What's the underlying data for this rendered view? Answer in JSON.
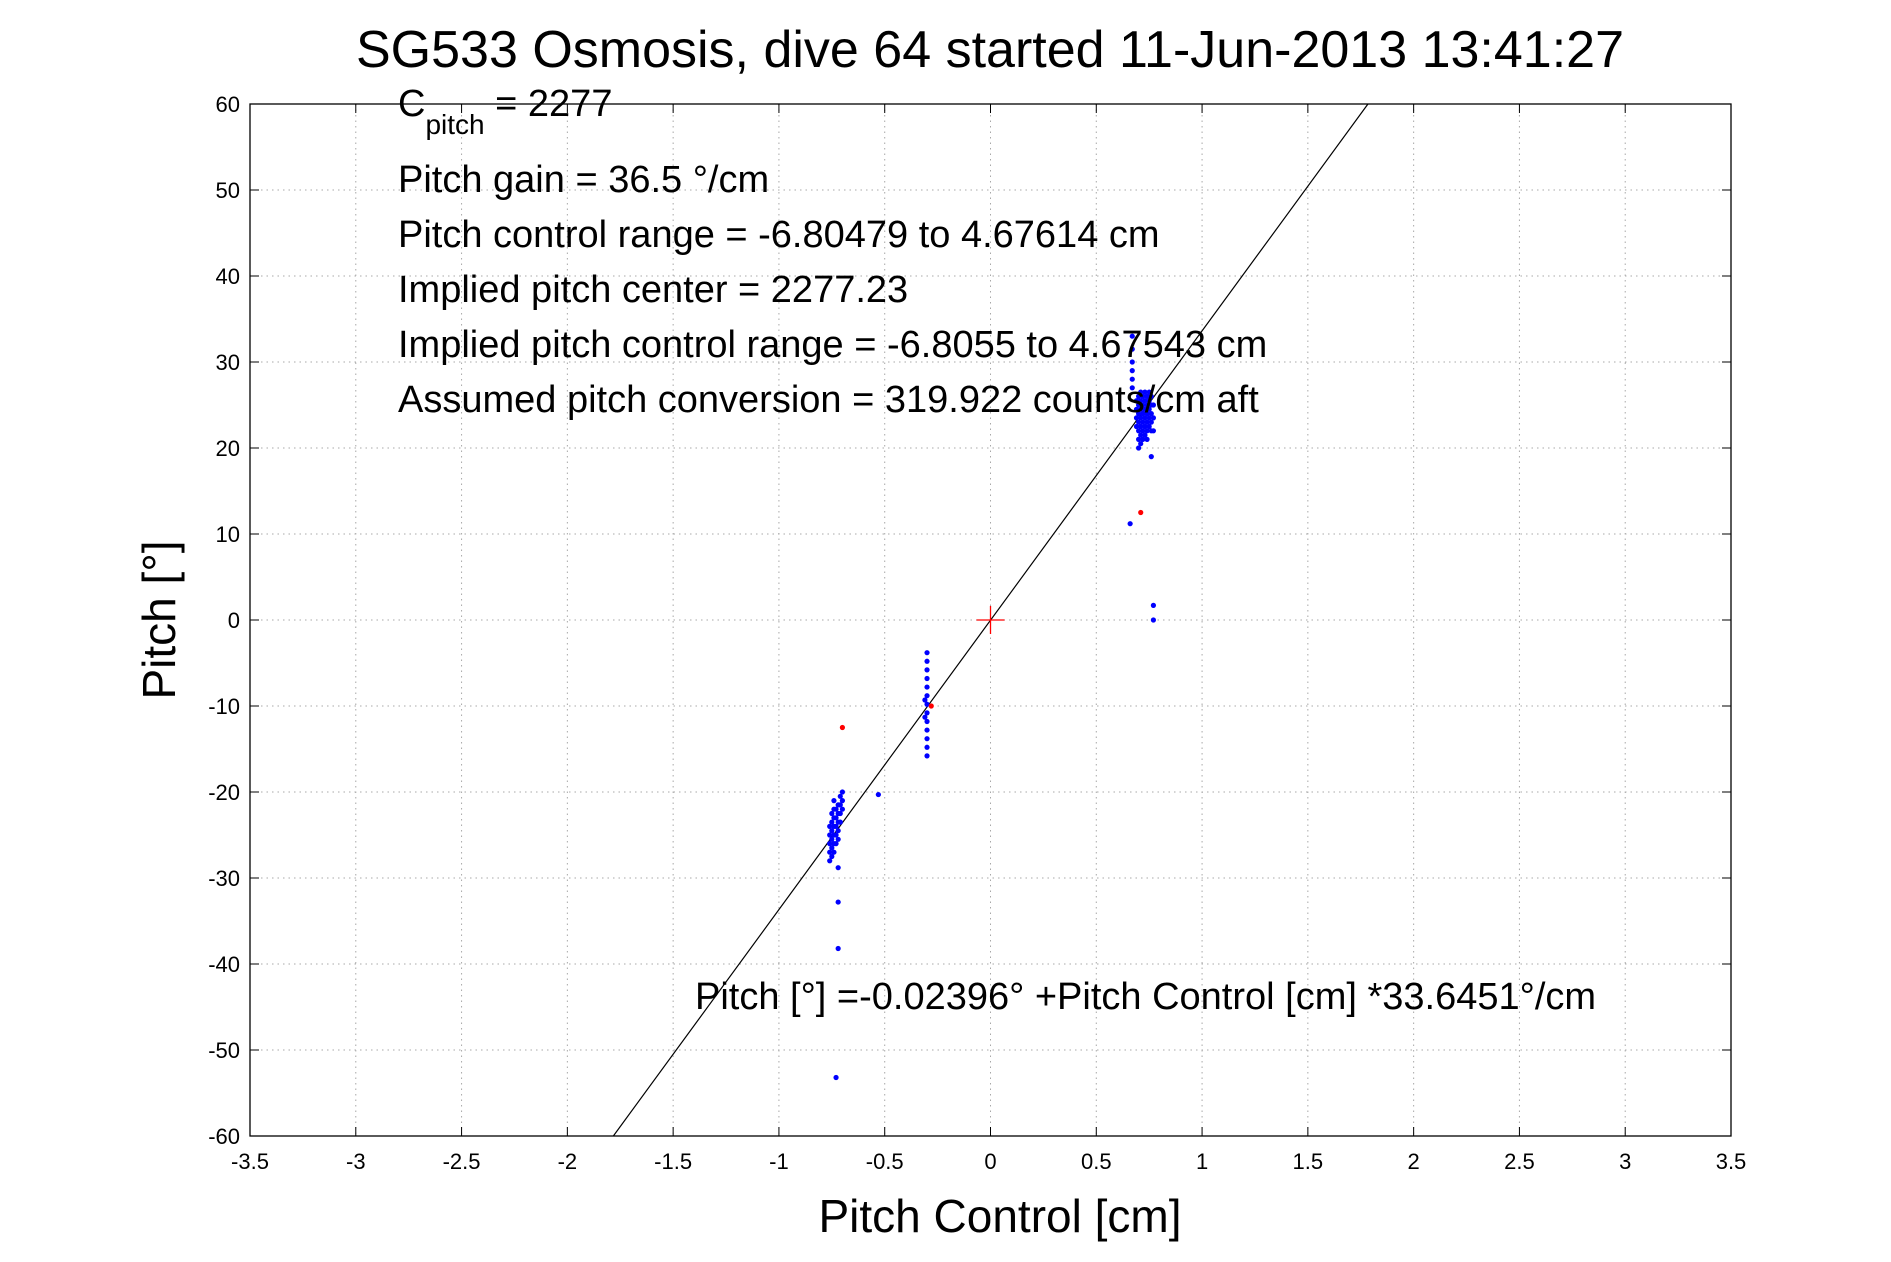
{
  "chart_data": {
    "type": "scatter",
    "title": "SG533 Osmosis, dive 64 started 11-Jun-2013 13:41:27",
    "xlabel": "Pitch Control [cm]",
    "ylabel": "Pitch [°]",
    "xlim": [
      -3.5,
      3.5
    ],
    "ylim": [
      -60,
      60
    ],
    "x_ticks": [
      "-3.5",
      "-3",
      "-2.5",
      "-2",
      "-1.5",
      "-1",
      "-0.5",
      "0",
      "0.5",
      "1",
      "1.5",
      "2",
      "2.5",
      "3",
      "3.5"
    ],
    "y_ticks": [
      "-60",
      "-50",
      "-40",
      "-30",
      "-20",
      "-10",
      "0",
      "10",
      "20",
      "30",
      "40",
      "50",
      "60"
    ],
    "grid": true,
    "annotations": {
      "c_pitch_symbol": "C",
      "c_pitch_subscript": "pitch",
      "c_pitch_value": " = 2277",
      "pitch_gain": "Pitch gain = 36.5 °/cm",
      "pitch_control_range": "Pitch control range = -6.80479 to 4.67614 cm",
      "implied_pitch_center": "Implied pitch center = 2277.23",
      "implied_pitch_control_range": "Implied pitch control range = -6.8055 to 4.67543 cm",
      "assumed_pitch_conversion": "Assumed pitch conversion = 319.922 counts/cm aft",
      "fit_equation": "Pitch [°] =-0.02396° +Pitch Control [cm] *33.6451°/cm"
    },
    "fit_line": {
      "intercept": -0.02396,
      "slope": 33.6451
    },
    "center_marker": {
      "x": 0,
      "y": 0
    },
    "series": [
      {
        "color": "#0000ff",
        "points": [
          [
            -0.76,
            -24.0
          ],
          [
            -0.76,
            -25.0
          ],
          [
            -0.76,
            -26.0
          ],
          [
            -0.76,
            -27.0
          ],
          [
            -0.76,
            -28.0
          ],
          [
            -0.75,
            -22.5
          ],
          [
            -0.75,
            -23.5
          ],
          [
            -0.75,
            -24.5
          ],
          [
            -0.75,
            -25.5
          ],
          [
            -0.75,
            -26.5
          ],
          [
            -0.75,
            -27.5
          ],
          [
            -0.74,
            -21.0
          ],
          [
            -0.74,
            -22.0
          ],
          [
            -0.74,
            -23.0
          ],
          [
            -0.74,
            -24.0
          ],
          [
            -0.74,
            -25.0
          ],
          [
            -0.74,
            -26.0
          ],
          [
            -0.74,
            -27.0
          ],
          [
            -0.73,
            -22.0
          ],
          [
            -0.73,
            -23.0
          ],
          [
            -0.73,
            -24.0
          ],
          [
            -0.73,
            -25.0
          ],
          [
            -0.73,
            -26.0
          ],
          [
            -0.72,
            -21.5
          ],
          [
            -0.72,
            -22.5
          ],
          [
            -0.72,
            -23.5
          ],
          [
            -0.72,
            -24.5
          ],
          [
            -0.72,
            -25.5
          ],
          [
            -0.71,
            -20.5
          ],
          [
            -0.71,
            -21.5
          ],
          [
            -0.71,
            -22.5
          ],
          [
            -0.71,
            -23.5
          ],
          [
            -0.7,
            -20.0
          ],
          [
            -0.7,
            -21.0
          ],
          [
            -0.7,
            -22.0
          ],
          [
            -0.72,
            -28.8
          ],
          [
            -0.72,
            -32.8
          ],
          [
            -0.72,
            -38.2
          ],
          [
            -0.73,
            -53.2
          ],
          [
            -0.53,
            -20.3
          ],
          [
            -0.3,
            -3.8
          ],
          [
            -0.3,
            -4.8
          ],
          [
            -0.3,
            -5.8
          ],
          [
            -0.3,
            -6.8
          ],
          [
            -0.3,
            -7.8
          ],
          [
            -0.3,
            -8.8
          ],
          [
            -0.3,
            -9.8
          ],
          [
            -0.3,
            -10.8
          ],
          [
            -0.3,
            -11.8
          ],
          [
            -0.3,
            -12.8
          ],
          [
            -0.3,
            -13.8
          ],
          [
            -0.3,
            -14.8
          ],
          [
            -0.3,
            -15.8
          ],
          [
            -0.31,
            -9.3
          ],
          [
            -0.31,
            -11.3
          ],
          [
            0.67,
            33.0
          ],
          [
            0.67,
            31.5
          ],
          [
            0.67,
            30.0
          ],
          [
            0.67,
            29.0
          ],
          [
            0.67,
            28.0
          ],
          [
            0.67,
            27.0
          ],
          [
            0.69,
            25.5
          ],
          [
            0.69,
            24.5
          ],
          [
            0.69,
            23.5
          ],
          [
            0.69,
            22.5
          ],
          [
            0.7,
            26.0
          ],
          [
            0.7,
            25.0
          ],
          [
            0.7,
            24.0
          ],
          [
            0.7,
            23.0
          ],
          [
            0.7,
            22.0
          ],
          [
            0.7,
            21.0
          ],
          [
            0.7,
            20.0
          ],
          [
            0.71,
            26.5
          ],
          [
            0.71,
            25.5
          ],
          [
            0.71,
            24.5
          ],
          [
            0.71,
            23.5
          ],
          [
            0.71,
            22.5
          ],
          [
            0.71,
            21.5
          ],
          [
            0.71,
            20.5
          ],
          [
            0.72,
            26.0
          ],
          [
            0.72,
            25.0
          ],
          [
            0.72,
            24.0
          ],
          [
            0.72,
            23.0
          ],
          [
            0.72,
            22.0
          ],
          [
            0.72,
            21.0
          ],
          [
            0.73,
            26.5
          ],
          [
            0.73,
            25.5
          ],
          [
            0.73,
            24.5
          ],
          [
            0.73,
            23.5
          ],
          [
            0.73,
            22.5
          ],
          [
            0.73,
            21.5
          ],
          [
            0.74,
            26.0
          ],
          [
            0.74,
            25.0
          ],
          [
            0.74,
            24.0
          ],
          [
            0.74,
            23.0
          ],
          [
            0.74,
            22.0
          ],
          [
            0.74,
            21.0
          ],
          [
            0.75,
            26.5
          ],
          [
            0.75,
            25.5
          ],
          [
            0.75,
            24.5
          ],
          [
            0.75,
            23.5
          ],
          [
            0.75,
            22.5
          ],
          [
            0.76,
            26.0
          ],
          [
            0.76,
            25.0
          ],
          [
            0.76,
            24.0
          ],
          [
            0.76,
            23.0
          ],
          [
            0.76,
            22.0
          ],
          [
            0.77,
            25.0
          ],
          [
            0.77,
            23.5
          ],
          [
            0.77,
            22.0
          ],
          [
            0.76,
            19.0
          ],
          [
            0.66,
            11.2
          ],
          [
            0.77,
            1.7
          ],
          [
            0.77,
            0.0
          ]
        ]
      },
      {
        "color": "#ff0000",
        "points": [
          [
            -0.7,
            -12.5
          ],
          [
            -0.28,
            -10.0
          ],
          [
            0.71,
            12.5
          ]
        ]
      }
    ]
  }
}
